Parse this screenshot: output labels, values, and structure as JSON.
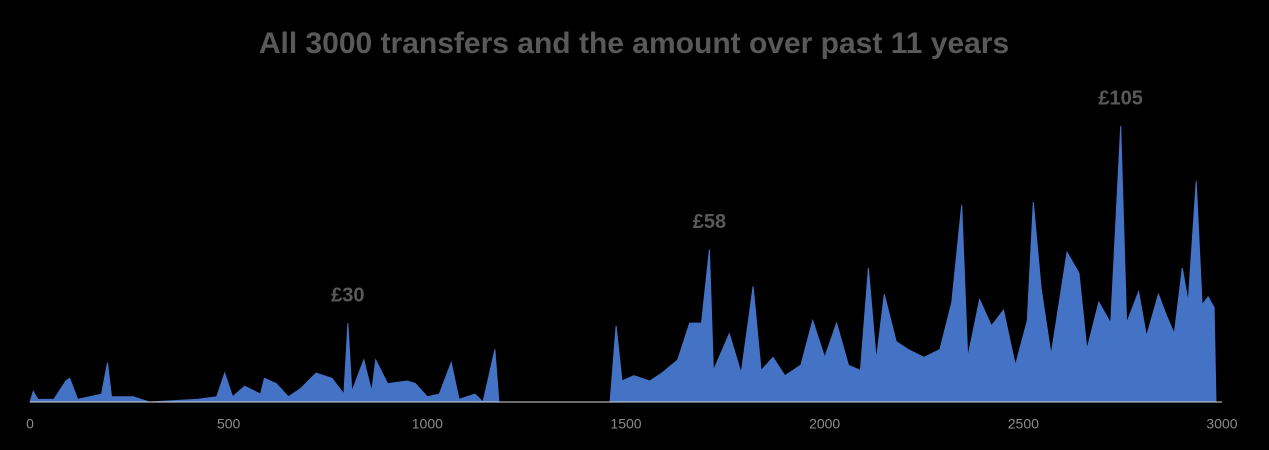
{
  "chart_data": {
    "type": "area",
    "title": "All 3000 transfers and the amount over past 11 years",
    "color": "#4472c4",
    "xlim": [
      0,
      3000
    ],
    "xticks": [
      0,
      500,
      1000,
      1500,
      2000,
      2500,
      3000
    ],
    "x": [
      0,
      8,
      20,
      60,
      90,
      100,
      120,
      150,
      180,
      195,
      205,
      260,
      300,
      420,
      470,
      490,
      510,
      540,
      580,
      590,
      620,
      650,
      680,
      720,
      760,
      790,
      800,
      810,
      840,
      860,
      870,
      900,
      950,
      970,
      1000,
      1030,
      1060,
      1080,
      1120,
      1140,
      1170,
      1180,
      1460,
      1475,
      1490,
      1520,
      1560,
      1590,
      1630,
      1660,
      1690,
      1710,
      1720,
      1760,
      1790,
      1820,
      1840,
      1870,
      1900,
      1940,
      1970,
      2000,
      2030,
      2060,
      2090,
      2110,
      2130,
      2150,
      2180,
      2210,
      2250,
      2290,
      2320,
      2345,
      2360,
      2390,
      2420,
      2450,
      2480,
      2510,
      2525,
      2545,
      2570,
      2610,
      2640,
      2660,
      2690,
      2720,
      2745,
      2760,
      2790,
      2810,
      2840,
      2860,
      2880,
      2900,
      2915,
      2935,
      2950,
      2965,
      2980,
      2985
    ],
    "values": [
      0,
      4,
      1,
      1,
      8,
      9,
      1,
      2,
      3,
      15,
      2,
      2,
      0,
      1,
      2,
      11,
      2,
      6,
      3,
      9,
      7,
      2,
      5,
      11,
      9,
      3,
      30,
      4,
      16,
      4,
      16,
      7,
      8,
      7,
      2,
      3,
      15,
      1,
      3,
      0,
      20,
      0,
      0,
      29,
      8,
      10,
      8,
      11,
      16,
      30,
      30,
      58,
      12,
      26,
      11,
      44,
      12,
      17,
      10,
      14,
      31,
      17,
      30,
      14,
      12,
      51,
      16,
      41,
      23,
      20,
      17,
      20,
      38,
      75,
      17,
      39,
      29,
      35,
      14,
      31,
      76,
      43,
      18,
      57,
      49,
      20,
      38,
      30,
      105,
      30,
      42,
      25,
      41,
      33,
      26,
      51,
      38,
      84,
      37,
      40,
      36,
      0
    ],
    "value_labels": [
      null,
      null,
      null,
      null,
      null,
      null,
      null,
      null,
      null,
      null,
      null,
      null,
      null,
      null,
      null,
      null,
      null,
      null,
      null,
      null,
      null,
      null,
      null,
      null,
      null,
      null,
      "£30",
      null,
      null,
      null,
      null,
      null,
      null,
      null,
      null,
      null,
      null,
      null,
      null,
      null,
      null,
      null,
      null,
      null,
      null,
      null,
      null,
      null,
      null,
      null,
      null,
      "£58",
      null,
      null,
      null,
      null,
      null,
      null,
      null,
      null,
      null,
      null,
      null,
      null,
      null,
      null,
      null,
      null,
      null,
      null,
      null,
      null,
      null,
      null,
      null,
      null,
      null,
      null,
      null,
      null,
      null,
      null,
      null,
      null,
      null,
      null,
      null,
      null,
      "£105",
      null,
      null,
      null,
      null,
      null,
      null,
      null,
      null,
      null,
      null,
      null,
      null,
      null
    ]
  }
}
